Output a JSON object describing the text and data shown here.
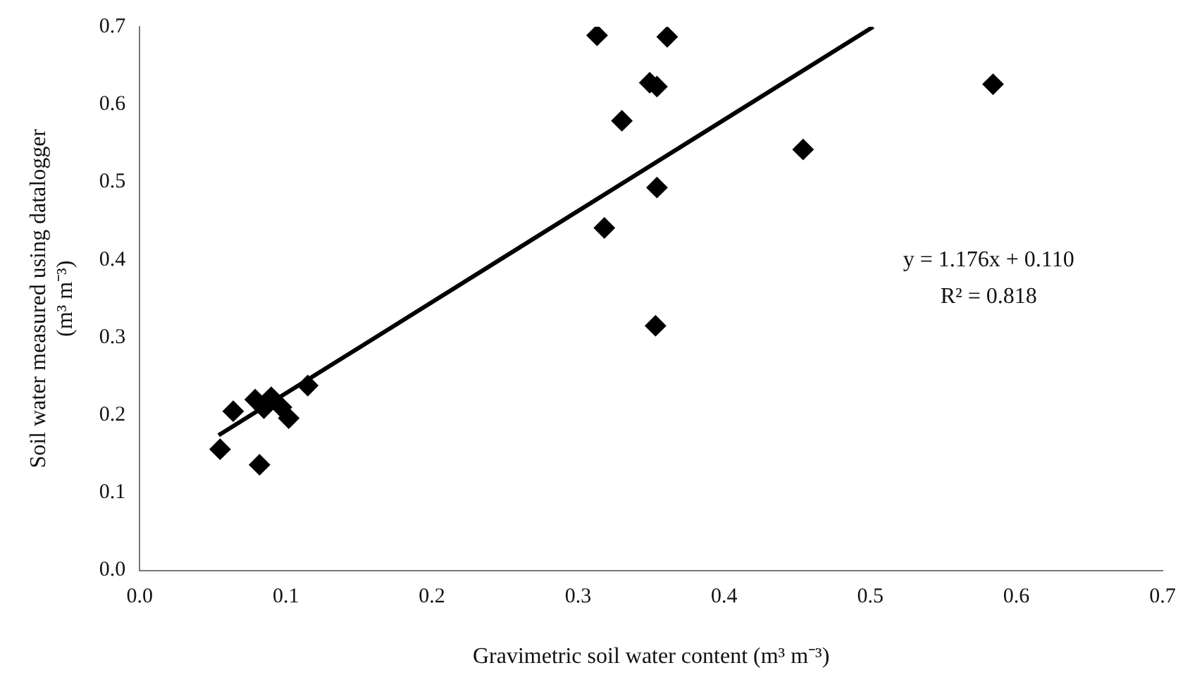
{
  "chart_data": {
    "type": "scatter",
    "xlabel": "Gravimetric soil water content (m³ m⁻³)",
    "ylabel": "Soil water measured using datalogger\n(m³ m⁻³)",
    "marker": "diamond",
    "grid": false,
    "legend": false,
    "xlim": [
      0,
      0.7
    ],
    "xticks": [
      {
        "value": 0,
        "label": "0.0"
      },
      0.1,
      0.2,
      0.3,
      0.4,
      0.5,
      0.6,
      0.7
    ],
    "ylim": [
      0,
      0.7
    ],
    "yticks": [
      {
        "value": 0,
        "label": "0.0"
      },
      0.1,
      0.2,
      0.3,
      0.4,
      0.5,
      0.6,
      0.7
    ],
    "annotations": [
      "y = 1.176x + 0.110",
      "R² = 0.818"
    ],
    "series": [
      {
        "type": "scatter",
        "color": "#000000",
        "x": [
          0.055,
          0.082,
          0.064,
          0.079,
          0.09,
          0.097,
          0.102,
          0.085,
          0.115,
          0.313,
          0.361,
          0.349,
          0.354,
          0.33,
          0.454,
          0.354,
          0.318,
          0.353,
          0.584
        ],
        "values": [
          0.156,
          0.136,
          0.205,
          0.22,
          0.223,
          0.21,
          0.196,
          0.209,
          0.238,
          0.689,
          0.687,
          0.628,
          0.623,
          0.579,
          0.542,
          0.493,
          0.441,
          0.315,
          0.626
        ]
      },
      {
        "type": "line",
        "color": "#000000",
        "marker": "none",
        "x": [
          0.054,
          0.502
        ],
        "values": [
          0.174,
          0.7
        ]
      }
    ]
  }
}
